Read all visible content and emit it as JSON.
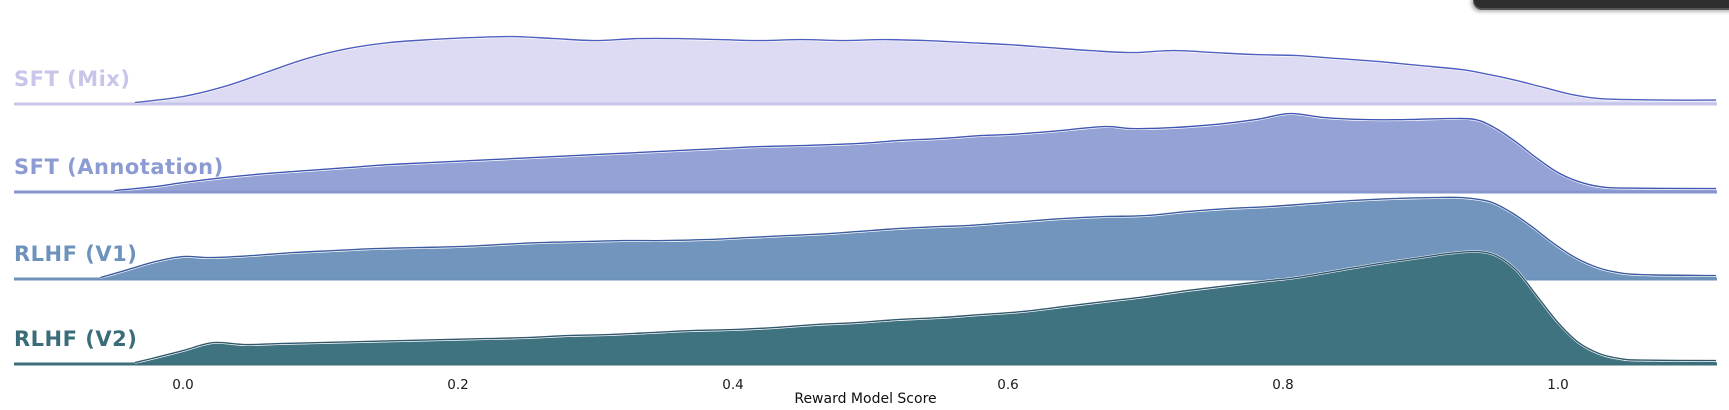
{
  "figure": {
    "background": "#ffffff",
    "overlay_fragment": {
      "description": "dark rounded window/menu edge clipped at top-right",
      "color": "#2d2d2d",
      "edge_highlight": "#565656"
    }
  },
  "chart_data": {
    "type": "area",
    "variant": "ridgeline KDE density plot (joyplot), one overlapping row per model",
    "title": "",
    "xlabel": "Reward Model Score",
    "ylabel": "",
    "grid": false,
    "legend_position": "row labels at left of each ridge",
    "xlim": [
      -0.123,
      1.116
    ],
    "x_ticks": [
      0.0,
      0.2,
      0.4,
      0.6,
      0.8,
      1.0
    ],
    "x_tick_labels": [
      "0.0",
      "0.2",
      "0.4",
      "0.6",
      "0.8",
      "1.0"
    ],
    "density_units": "relative density, rendered as pixels above each row baseline",
    "series": [
      {
        "name": "SFT (Mix)",
        "label_color": "#c7c5ea",
        "fill": "#dcdbf3",
        "stroke": "#4f5fc0",
        "baseline_color": "#c5c4e9",
        "summary": "broad plateau from ~0.15 to ~0.6, slow decline, drop near 1.0",
        "points": [
          [
            -0.035,
            0
          ],
          [
            0.0,
            6
          ],
          [
            0.03,
            16
          ],
          [
            0.06,
            30
          ],
          [
            0.09,
            44
          ],
          [
            0.12,
            54
          ],
          [
            0.15,
            60
          ],
          [
            0.18,
            63
          ],
          [
            0.21,
            65
          ],
          [
            0.24,
            66
          ],
          [
            0.27,
            64
          ],
          [
            0.3,
            62
          ],
          [
            0.33,
            64
          ],
          [
            0.36,
            64
          ],
          [
            0.39,
            63
          ],
          [
            0.42,
            62
          ],
          [
            0.45,
            63
          ],
          [
            0.48,
            62
          ],
          [
            0.51,
            63
          ],
          [
            0.54,
            62
          ],
          [
            0.57,
            60
          ],
          [
            0.6,
            58
          ],
          [
            0.63,
            55
          ],
          [
            0.66,
            52
          ],
          [
            0.69,
            50
          ],
          [
            0.72,
            52
          ],
          [
            0.75,
            50
          ],
          [
            0.78,
            48
          ],
          [
            0.81,
            47
          ],
          [
            0.84,
            44
          ],
          [
            0.87,
            41
          ],
          [
            0.9,
            37
          ],
          [
            0.93,
            33
          ],
          [
            0.95,
            28
          ],
          [
            0.97,
            22
          ],
          [
            0.99,
            15
          ],
          [
            1.01,
            8
          ],
          [
            1.03,
            4
          ],
          [
            1.05,
            3
          ],
          [
            1.08,
            2.5
          ],
          [
            1.115,
            2.5
          ]
        ]
      },
      {
        "name": "SFT (Annotation)",
        "label_color": "#8d9bd3",
        "fill": "#94a2d6",
        "stroke": "#3f55b2",
        "baseline_color": "#8796ce",
        "summary": "steady ramp up, hump near 0.8, cliff just before 1.0",
        "points": [
          [
            -0.05,
            0
          ],
          [
            -0.02,
            4
          ],
          [
            0.0,
            8
          ],
          [
            0.03,
            13
          ],
          [
            0.06,
            17
          ],
          [
            0.09,
            20
          ],
          [
            0.12,
            23
          ],
          [
            0.15,
            26
          ],
          [
            0.18,
            28
          ],
          [
            0.21,
            30
          ],
          [
            0.24,
            32
          ],
          [
            0.27,
            34
          ],
          [
            0.3,
            36
          ],
          [
            0.33,
            38
          ],
          [
            0.36,
            40
          ],
          [
            0.39,
            42
          ],
          [
            0.42,
            44
          ],
          [
            0.45,
            45
          ],
          [
            0.49,
            47
          ],
          [
            0.52,
            50
          ],
          [
            0.55,
            52
          ],
          [
            0.58,
            55
          ],
          [
            0.6,
            56
          ],
          [
            0.63,
            59
          ],
          [
            0.67,
            64
          ],
          [
            0.69,
            62
          ],
          [
            0.72,
            63
          ],
          [
            0.75,
            66
          ],
          [
            0.78,
            71
          ],
          [
            0.805,
            77
          ],
          [
            0.83,
            73
          ],
          [
            0.86,
            71
          ],
          [
            0.89,
            71
          ],
          [
            0.92,
            72
          ],
          [
            0.94,
            71
          ],
          [
            0.955,
            62
          ],
          [
            0.97,
            48
          ],
          [
            0.985,
            32
          ],
          [
            1.0,
            18
          ],
          [
            1.015,
            9
          ],
          [
            1.03,
            4
          ],
          [
            1.05,
            2.5
          ],
          [
            1.115,
            2
          ]
        ]
      },
      {
        "name": "RLHF (V1)",
        "label_color": "#6d93bd",
        "fill": "#7195bd",
        "stroke": "#3a5b9e",
        "baseline_color": "#6d92ba",
        "summary": "small bump at 0, rising mass toward plateau peak ~0.9, cliff after 0.95",
        "points": [
          [
            -0.06,
            0
          ],
          [
            -0.04,
            8
          ],
          [
            -0.02,
            16
          ],
          [
            0.0,
            21
          ],
          [
            0.02,
            20
          ],
          [
            0.05,
            22
          ],
          [
            0.08,
            25
          ],
          [
            0.11,
            27
          ],
          [
            0.14,
            29
          ],
          [
            0.17,
            30
          ],
          [
            0.2,
            31
          ],
          [
            0.23,
            33
          ],
          [
            0.26,
            35
          ],
          [
            0.29,
            36
          ],
          [
            0.32,
            37
          ],
          [
            0.35,
            37
          ],
          [
            0.38,
            38
          ],
          [
            0.41,
            40
          ],
          [
            0.44,
            42
          ],
          [
            0.47,
            44
          ],
          [
            0.49,
            46
          ],
          [
            0.52,
            49
          ],
          [
            0.55,
            51
          ],
          [
            0.57,
            52
          ],
          [
            0.6,
            55
          ],
          [
            0.62,
            57
          ],
          [
            0.64,
            59
          ],
          [
            0.67,
            61
          ],
          [
            0.7,
            62
          ],
          [
            0.73,
            66
          ],
          [
            0.76,
            69
          ],
          [
            0.79,
            71
          ],
          [
            0.82,
            74
          ],
          [
            0.85,
            77
          ],
          [
            0.88,
            79
          ],
          [
            0.91,
            80
          ],
          [
            0.93,
            80
          ],
          [
            0.95,
            76
          ],
          [
            0.965,
            66
          ],
          [
            0.98,
            52
          ],
          [
            0.995,
            36
          ],
          [
            1.01,
            22
          ],
          [
            1.025,
            12
          ],
          [
            1.04,
            6
          ],
          [
            1.06,
            3
          ],
          [
            1.115,
            2
          ]
        ]
      },
      {
        "name": "RLHF (V2)",
        "label_color": "#3a6d79",
        "fill": "#3e737f",
        "stroke": "#30566b",
        "baseline_color": "#3d6f7b",
        "summary": "small bump at 0, long rise, tall sharp peak near 0.94, steep cliff to ~1.04",
        "points": [
          [
            -0.035,
            0
          ],
          [
            -0.02,
            5
          ],
          [
            0.0,
            12
          ],
          [
            0.022,
            20
          ],
          [
            0.045,
            18
          ],
          [
            0.07,
            19
          ],
          [
            0.1,
            20
          ],
          [
            0.13,
            21
          ],
          [
            0.16,
            22
          ],
          [
            0.19,
            23
          ],
          [
            0.22,
            24
          ],
          [
            0.25,
            25
          ],
          [
            0.28,
            27
          ],
          [
            0.31,
            28
          ],
          [
            0.34,
            30
          ],
          [
            0.37,
            32
          ],
          [
            0.4,
            33
          ],
          [
            0.43,
            35
          ],
          [
            0.46,
            38
          ],
          [
            0.49,
            40
          ],
          [
            0.52,
            43
          ],
          [
            0.55,
            45
          ],
          [
            0.58,
            48
          ],
          [
            0.61,
            51
          ],
          [
            0.64,
            56
          ],
          [
            0.67,
            61
          ],
          [
            0.7,
            66
          ],
          [
            0.73,
            72
          ],
          [
            0.76,
            77
          ],
          [
            0.79,
            82
          ],
          [
            0.81,
            85
          ],
          [
            0.84,
            92
          ],
          [
            0.87,
            99
          ],
          [
            0.9,
            105
          ],
          [
            0.92,
            109
          ],
          [
            0.94,
            111
          ],
          [
            0.955,
            107
          ],
          [
            0.97,
            92
          ],
          [
            0.985,
            66
          ],
          [
            1.0,
            40
          ],
          [
            1.015,
            20
          ],
          [
            1.03,
            9
          ],
          [
            1.045,
            4
          ],
          [
            1.06,
            2.5
          ],
          [
            1.115,
            2
          ]
        ]
      }
    ]
  }
}
